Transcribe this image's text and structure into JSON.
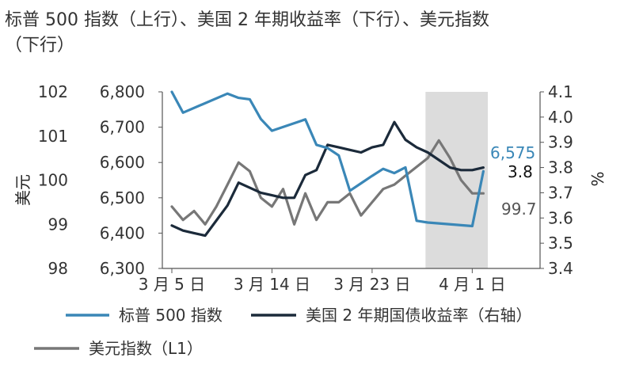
{
  "chart_data": {
    "type": "line",
    "title": "标普 500 指数（上行）、美国 2 年期收益率（下行）、美元指数（下行）",
    "title_lines": [
      "标普 500 指数（上行）、美国 2 年期收益率（下行）、美元指数",
      "（下行）"
    ],
    "y_left_outer": {
      "label": "美元",
      "ticks": [
        "102",
        "101",
        "100",
        "99",
        "98"
      ],
      "tick_values": [
        102,
        101,
        100,
        99,
        98
      ],
      "range": [
        98,
        102
      ]
    },
    "y_left_inner": {
      "ticks": [
        "6,800",
        "6,700",
        "6,600",
        "6,500",
        "6,400",
        "6,300"
      ],
      "tick_values": [
        6800,
        6700,
        6600,
        6500,
        6400,
        6300
      ],
      "range": [
        6300,
        6800
      ]
    },
    "y_right": {
      "label": "%",
      "ticks": [
        "4.1",
        "4.0",
        "3.9",
        "3.8",
        "3.7",
        "3.6",
        "3.5",
        "3.4"
      ],
      "tick_values": [
        4.1,
        4.0,
        3.9,
        3.8,
        3.7,
        3.6,
        3.5,
        3.4
      ],
      "range": [
        3.4,
        4.1
      ]
    },
    "x_ticks": [
      {
        "label": "3 月 5 日",
        "index": 0
      },
      {
        "label": "3 月 14 日",
        "index": 9
      },
      {
        "label": "3 月 23 日",
        "index": 18
      },
      {
        "label": "4 月 1 日",
        "index": 27
      }
    ],
    "x_count": 29,
    "shaded_region": {
      "from_index": 22.8,
      "to_index": 28.4
    },
    "series": [
      {
        "name": "标普 500 指数",
        "axis": "inner_left",
        "color": "#3a87b7",
        "x": [
          0,
          1,
          5,
          6,
          7,
          8,
          9,
          12,
          13,
          14,
          15,
          16,
          17,
          18,
          19,
          20,
          21,
          22,
          23,
          27,
          28
        ],
        "values": [
          6800,
          6741,
          6795,
          6783,
          6779,
          6723,
          6690,
          6722,
          6650,
          6641,
          6620,
          6520,
          6541,
          6562,
          6582,
          6570,
          6586,
          6435,
          6430,
          6420,
          6575
        ],
        "end_label": "6,575"
      },
      {
        "name": "美国 2 年期国债收益率（右轴）",
        "axis": "right",
        "color": "#1b2a3a",
        "x": [
          0,
          1,
          2,
          3,
          4,
          5,
          6,
          7,
          8,
          9,
          10,
          11,
          12,
          13,
          14,
          15,
          16,
          17,
          18,
          19,
          20,
          21,
          22,
          23,
          24,
          25,
          26,
          27,
          28
        ],
        "values": [
          3.57,
          3.55,
          3.54,
          3.53,
          3.59,
          3.65,
          3.74,
          3.72,
          3.7,
          3.69,
          3.68,
          3.68,
          3.77,
          3.79,
          3.89,
          3.88,
          3.87,
          3.86,
          3.88,
          3.89,
          3.98,
          3.91,
          3.88,
          3.86,
          3.83,
          3.8,
          3.79,
          3.79,
          3.8
        ],
        "end_label": "3.8"
      },
      {
        "name": "美元指数（L1）",
        "axis": "outer_left",
        "color": "#777777",
        "x": [
          0,
          1,
          2,
          3,
          4,
          5,
          6,
          7,
          8,
          9,
          10,
          11,
          12,
          13,
          14,
          15,
          16,
          17,
          18,
          19,
          20,
          21,
          22,
          23,
          24,
          25,
          26,
          27,
          28
        ],
        "values": [
          99.4,
          99.1,
          99.3,
          99.0,
          99.4,
          99.9,
          100.4,
          100.2,
          99.6,
          99.4,
          99.8,
          99.0,
          99.7,
          99.1,
          99.5,
          99.5,
          99.7,
          99.2,
          99.5,
          99.8,
          99.9,
          100.1,
          100.3,
          100.5,
          100.9,
          100.5,
          100.0,
          99.7,
          99.7
        ],
        "end_label": "99.7"
      }
    ],
    "legend": [
      {
        "label": "标普 500 指数",
        "color": "#3a87b7"
      },
      {
        "label": "美国 2 年期国债收益率（右轴）",
        "color": "#1b2a3a"
      },
      {
        "label": "美元指数（L1）",
        "color": "#777777"
      }
    ],
    "legend_position": "bottom",
    "grid": false
  }
}
